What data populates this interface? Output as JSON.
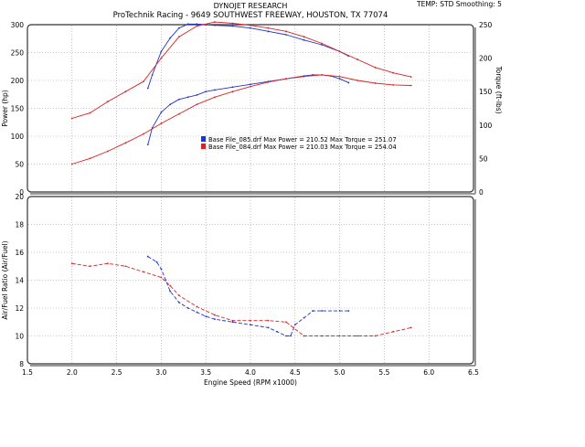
{
  "header": {
    "title": "DYNOJET RESEARCH",
    "subtitle": "ProTechnik Racing - 9649 SOUTHWEST FREEWAY, HOUSTON, TX 77074",
    "corner": "TEMP: STD  Smoothing: 5"
  },
  "chart_data": [
    {
      "type": "line",
      "title": "",
      "xlabel": "",
      "ylabel": "Power (hp)",
      "ylabel_right": "Torque (ft-lbs)",
      "xlim": [
        1.5,
        6.5
      ],
      "ylim": [
        0,
        300
      ],
      "ylim_right": [
        0,
        250
      ],
      "xticks": [
        "1.5",
        "2.0",
        "2.5",
        "3.0",
        "3.5",
        "4.0",
        "4.5",
        "5.0",
        "5.5",
        "6.0",
        "6.5"
      ],
      "yticks": [
        "0",
        "50",
        "100",
        "150",
        "200",
        "250",
        "300"
      ],
      "yticks_right": [
        "0",
        "50",
        "100",
        "150",
        "200",
        "250"
      ],
      "grid": true,
      "legend": [
        {
          "text": "Base File_085.drf Max Power = 210.52   Max Torque = 251.07",
          "color": "#2233cc"
        },
        {
          "text": "Base File_084.drf Max Power = 210.03   Max Torque = 254.04",
          "color": "#dd2222"
        }
      ],
      "series": [
        {
          "name": "Base File_085.drf Power",
          "color": "#2233cc",
          "axis": "left",
          "x": [
            2.85,
            2.9,
            3.0,
            3.1,
            3.2,
            3.3,
            3.4,
            3.5,
            3.6,
            3.8,
            4.0,
            4.2,
            4.4,
            4.6,
            4.7,
            4.8,
            4.9,
            5.0,
            5.1
          ],
          "y": [
            85,
            115,
            143,
            157,
            166,
            170,
            174,
            180,
            183,
            188,
            193,
            198,
            203,
            208,
            210,
            210,
            208,
            203,
            196
          ]
        },
        {
          "name": "Base File_084.drf Power",
          "color": "#dd2222",
          "axis": "left",
          "x": [
            2.0,
            2.2,
            2.4,
            2.6,
            2.8,
            3.0,
            3.2,
            3.4,
            3.6,
            3.8,
            4.0,
            4.2,
            4.4,
            4.6,
            4.8,
            5.0,
            5.2,
            5.4,
            5.6,
            5.8
          ],
          "y": [
            50,
            60,
            73,
            88,
            104,
            123,
            140,
            157,
            170,
            180,
            189,
            197,
            203,
            207,
            210,
            207,
            200,
            195,
            192,
            191
          ]
        },
        {
          "name": "Base File_085.drf Torque",
          "color": "#2233cc",
          "axis": "right",
          "x": [
            2.85,
            2.9,
            3.0,
            3.1,
            3.2,
            3.3,
            3.4,
            3.5,
            3.6,
            3.8,
            4.0,
            4.2,
            4.4,
            4.6,
            4.8,
            5.0,
            5.1
          ],
          "y": [
            155,
            175,
            210,
            230,
            245,
            251,
            251,
            250,
            249,
            248,
            245,
            240,
            235,
            227,
            220,
            210,
            203
          ]
        },
        {
          "name": "Base File_084.drf Torque",
          "color": "#dd2222",
          "axis": "right",
          "x": [
            2.0,
            2.2,
            2.4,
            2.6,
            2.8,
            3.0,
            3.2,
            3.4,
            3.6,
            3.8,
            4.0,
            4.2,
            4.4,
            4.6,
            4.8,
            5.0,
            5.2,
            5.4,
            5.6,
            5.8
          ],
          "y": [
            110,
            118,
            135,
            150,
            165,
            200,
            232,
            248,
            254,
            252,
            249,
            245,
            240,
            232,
            222,
            210,
            198,
            186,
            178,
            172
          ]
        }
      ]
    },
    {
      "type": "line",
      "title": "",
      "xlabel": "Engine Speed (RPM x1000)",
      "ylabel": "Air/Fuel Ratio (Air/Fuel)",
      "xlim": [
        1.5,
        6.5
      ],
      "ylim": [
        8,
        20
      ],
      "xticks": [
        "1.5",
        "2.0",
        "2.5",
        "3.0",
        "3.5",
        "4.0",
        "4.5",
        "5.0",
        "5.5",
        "6.0",
        "6.5"
      ],
      "yticks": [
        "8",
        "10",
        "12",
        "14",
        "16",
        "18",
        "20"
      ],
      "grid": true,
      "series": [
        {
          "name": "Base File_085.drf AFR",
          "color": "#2233cc",
          "x": [
            2.85,
            2.95,
            3.0,
            3.05,
            3.1,
            3.2,
            3.3,
            3.4,
            3.5,
            3.6,
            3.8,
            4.0,
            4.2,
            4.3,
            4.4,
            4.45,
            4.5,
            4.6,
            4.7,
            4.8,
            5.0,
            5.1
          ],
          "y": [
            15.7,
            15.3,
            14.8,
            14.0,
            13.2,
            12.4,
            12.0,
            11.7,
            11.4,
            11.2,
            11.0,
            10.8,
            10.6,
            10.3,
            10.0,
            10.0,
            10.8,
            11.3,
            11.8,
            11.8,
            11.8,
            11.8
          ]
        },
        {
          "name": "Base File_084.drf AFR",
          "color": "#dd2222",
          "x": [
            2.0,
            2.2,
            2.4,
            2.6,
            2.8,
            3.0,
            3.1,
            3.2,
            3.4,
            3.6,
            3.8,
            4.0,
            4.2,
            4.4,
            4.6,
            4.8,
            5.0,
            5.2,
            5.4,
            5.6,
            5.8
          ],
          "y": [
            15.2,
            15.0,
            15.2,
            15.0,
            14.6,
            14.2,
            13.6,
            12.9,
            12.1,
            11.5,
            11.1,
            11.1,
            11.1,
            11.0,
            10.0,
            10.0,
            10.0,
            10.0,
            10.0,
            10.3,
            10.6
          ]
        }
      ]
    }
  ]
}
